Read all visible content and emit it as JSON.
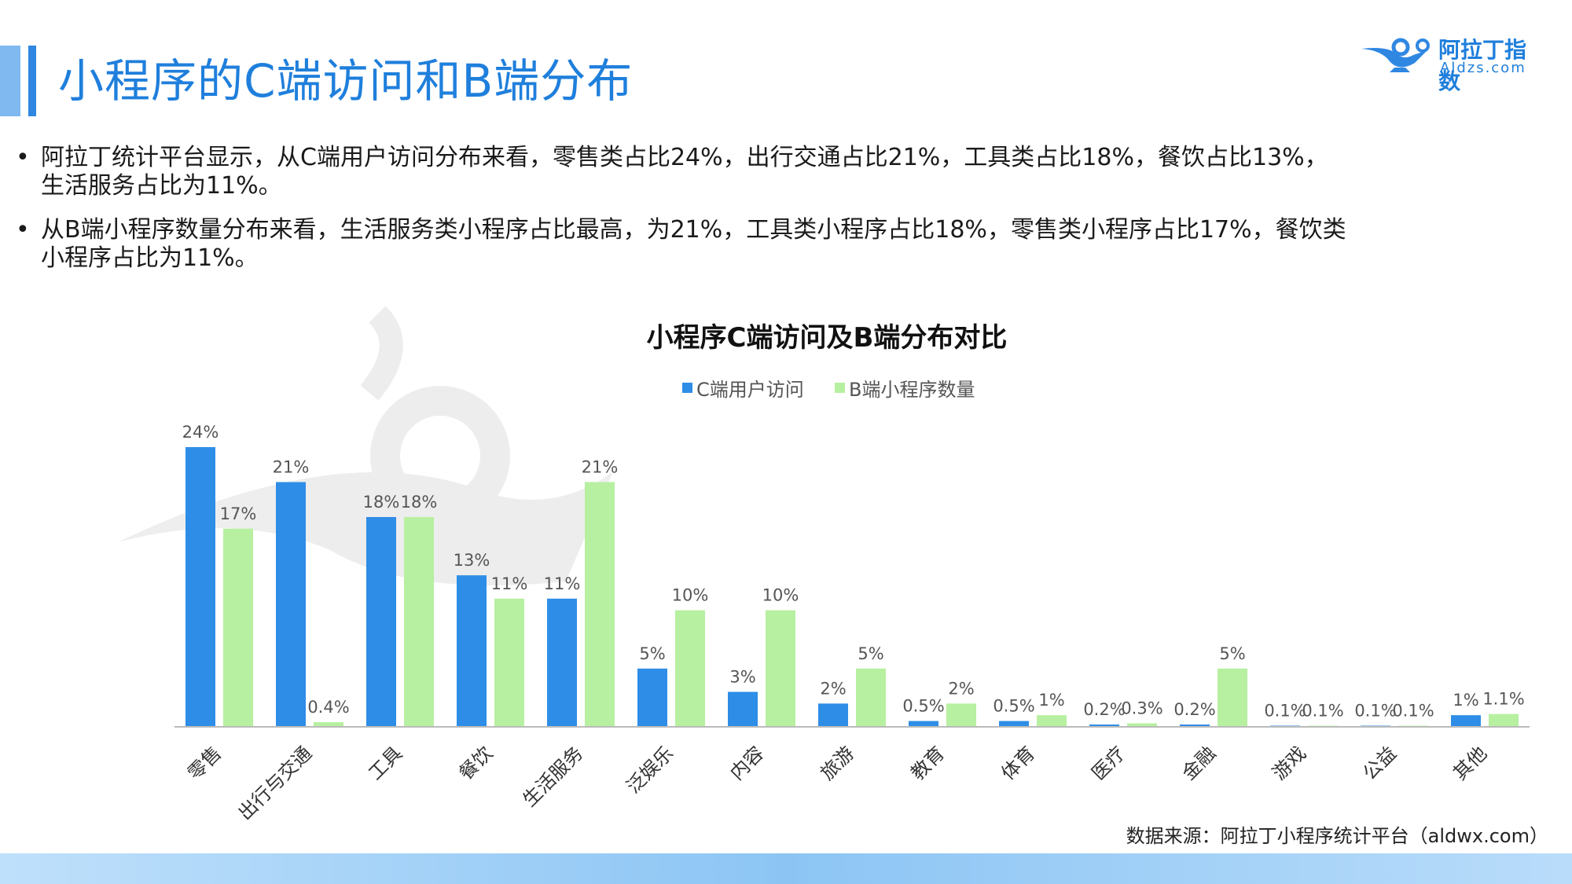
{
  "header": {
    "title": "小程序的C端访问和B端分布",
    "logo_text": "阿拉丁指数",
    "logo_domain": "Aldzs.com"
  },
  "bullets": [
    [
      "阿拉丁统计平台显示，从C端用户访问分布来看，零售类占比24%，出行交通占比21%，工具类占比18%，餐饮占比13%，",
      "生活服务占比为11%。"
    ],
    [
      "从B端小程序数量分布来看，生活服务类小程序占比最高，为21%，工具类小程序占比18%，零售类小程序占比17%，餐饮类",
      "小程序占比为11%。"
    ]
  ],
  "chart_data": {
    "type": "bar",
    "title": "小程序C端访问及B端分布对比",
    "legend_position": "top",
    "categories": [
      "零售",
      "出行与交通",
      "工具",
      "餐饮",
      "生活服务",
      "泛娱乐",
      "内容",
      "旅游",
      "教育",
      "体育",
      "医疗",
      "金融",
      "游戏",
      "公益",
      "其他"
    ],
    "series": [
      {
        "name": "C端用户访问",
        "color": "#2e8de6",
        "values": [
          24,
          21,
          18,
          13,
          11,
          5,
          3,
          2,
          0.5,
          0.5,
          0.2,
          0.2,
          0.1,
          0.1,
          1
        ],
        "labels": [
          "24%",
          "21%",
          "18%",
          "13%",
          "11%",
          "5%",
          "3%",
          "2%",
          "0.5%",
          "0.5%",
          "0.2%",
          "0.2%",
          "0.1%",
          "0.1%",
          "1%"
        ]
      },
      {
        "name": "B端小程序数量",
        "color": "#b7f0a0",
        "values": [
          17,
          0.4,
          18,
          11,
          21,
          10,
          10,
          5,
          2,
          1,
          0.3,
          5,
          0.1,
          0.1,
          1.1
        ],
        "labels": [
          "17%",
          "0.4%",
          "18%",
          "11%",
          "21%",
          "10%",
          "10%",
          "5%",
          "2%",
          "1%",
          "0.3%",
          "5%",
          "0.1%",
          "0.1%",
          "1.1%"
        ]
      }
    ],
    "ylim": [
      0,
      25
    ]
  },
  "footer": {
    "source": "数据来源：阿拉丁小程序统计平台（aldwx.com）"
  }
}
